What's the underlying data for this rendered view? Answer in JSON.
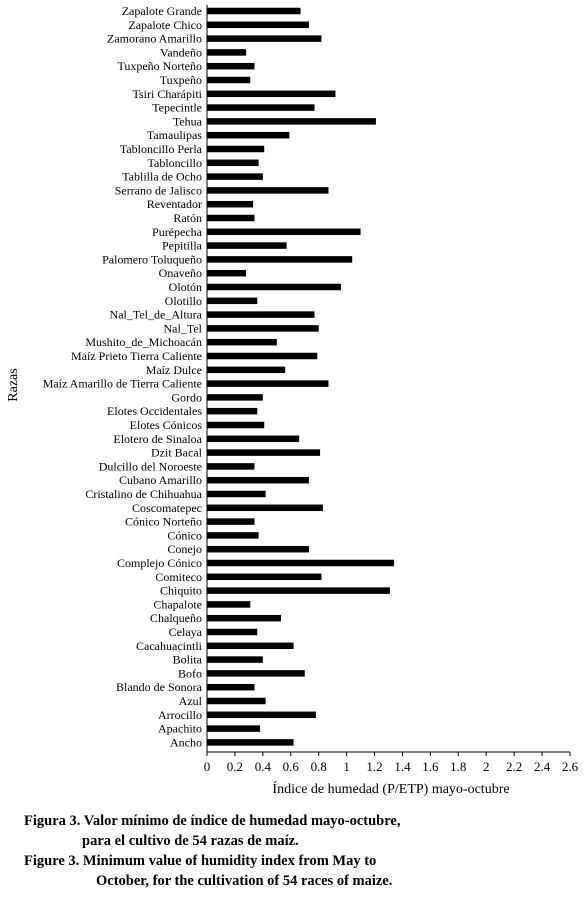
{
  "chart_data": {
    "type": "bar",
    "orientation": "horizontal",
    "ylabel": "Razas",
    "xlabel": "Índice de humedad (P/ETP) mayo-octubre",
    "xlim": [
      0,
      2.6
    ],
    "xticks": [
      "0",
      "0.2",
      "0.4",
      "0.6",
      "0.8",
      "1",
      "1.2",
      "1.4",
      "1.6",
      "1.8",
      "2",
      "2.2",
      "2.4",
      "2.6"
    ],
    "grid": false,
    "bar_color": "#000000",
    "categories": [
      "Zapalote Grande",
      "Zapalote Chico",
      "Zamorano Amarillo",
      "Vandeño",
      "Tuxpeño Norteño",
      "Tuxpeño",
      "Tsiri Charápiti",
      "Tepecintle",
      "Tehua",
      "Tamaulipas",
      "Tabloncillo Perla",
      "Tabloncillo",
      "Tablilla de Ocho",
      "Serrano de Jalisco",
      "Reventador",
      "Ratón",
      "Purépecha",
      "Pepitilla",
      "Palomero Toluqueño",
      "Onaveño",
      "Olotón",
      "Olotillo",
      "Nal_Tel_de_Altura",
      "Nal_Tel",
      "Mushito_de_Michoacán",
      "Maíz Prieto Tierra Caliente",
      "Maíz Dulce",
      "Maíz Amarillo de Tierra Caliente",
      "Gordo",
      "Elotes Occidentales",
      "Elotes Cónicos",
      "Elotero de Sinaloa",
      "Dzit Bacal",
      "Dulcillo del Noroeste",
      "Cubano Amarillo",
      "Cristalino de Chihuahua",
      "Coscomatepec",
      "Cónico Norteño",
      "Cónico",
      "Conejo",
      "Complejo Cónico",
      "Comiteco",
      "Chiquito",
      "Chapalote",
      "Chalqueño",
      "Celaya",
      "Cacahuacintli",
      "Bolita",
      "Bofo",
      "Blando de Sonora",
      "Azul",
      "Arrocillo",
      "Apachito",
      "Ancho"
    ],
    "values": [
      0.67,
      0.73,
      0.82,
      0.28,
      0.34,
      0.31,
      0.92,
      0.77,
      1.21,
      0.59,
      0.41,
      0.37,
      0.4,
      0.87,
      0.33,
      0.34,
      1.1,
      0.57,
      1.04,
      0.28,
      0.96,
      0.36,
      0.77,
      0.8,
      0.5,
      0.79,
      0.56,
      0.87,
      0.4,
      0.36,
      0.41,
      0.66,
      0.81,
      0.34,
      0.73,
      0.42,
      0.83,
      0.34,
      0.37,
      0.73,
      1.34,
      0.82,
      1.31,
      0.31,
      0.53,
      0.36,
      0.62,
      0.4,
      0.7,
      0.34,
      0.42,
      0.78,
      0.38,
      0.62
    ]
  },
  "caption": {
    "line1": "Figura 3. Valor mínimo de índice de humedad mayo-octubre,",
    "line2": "para el cultivo de 54 razas de maíz.",
    "line3": "Figure 3. Minimum value of humidity index from May to",
    "line4": "October, for the cultivation of 54 races of maize."
  }
}
